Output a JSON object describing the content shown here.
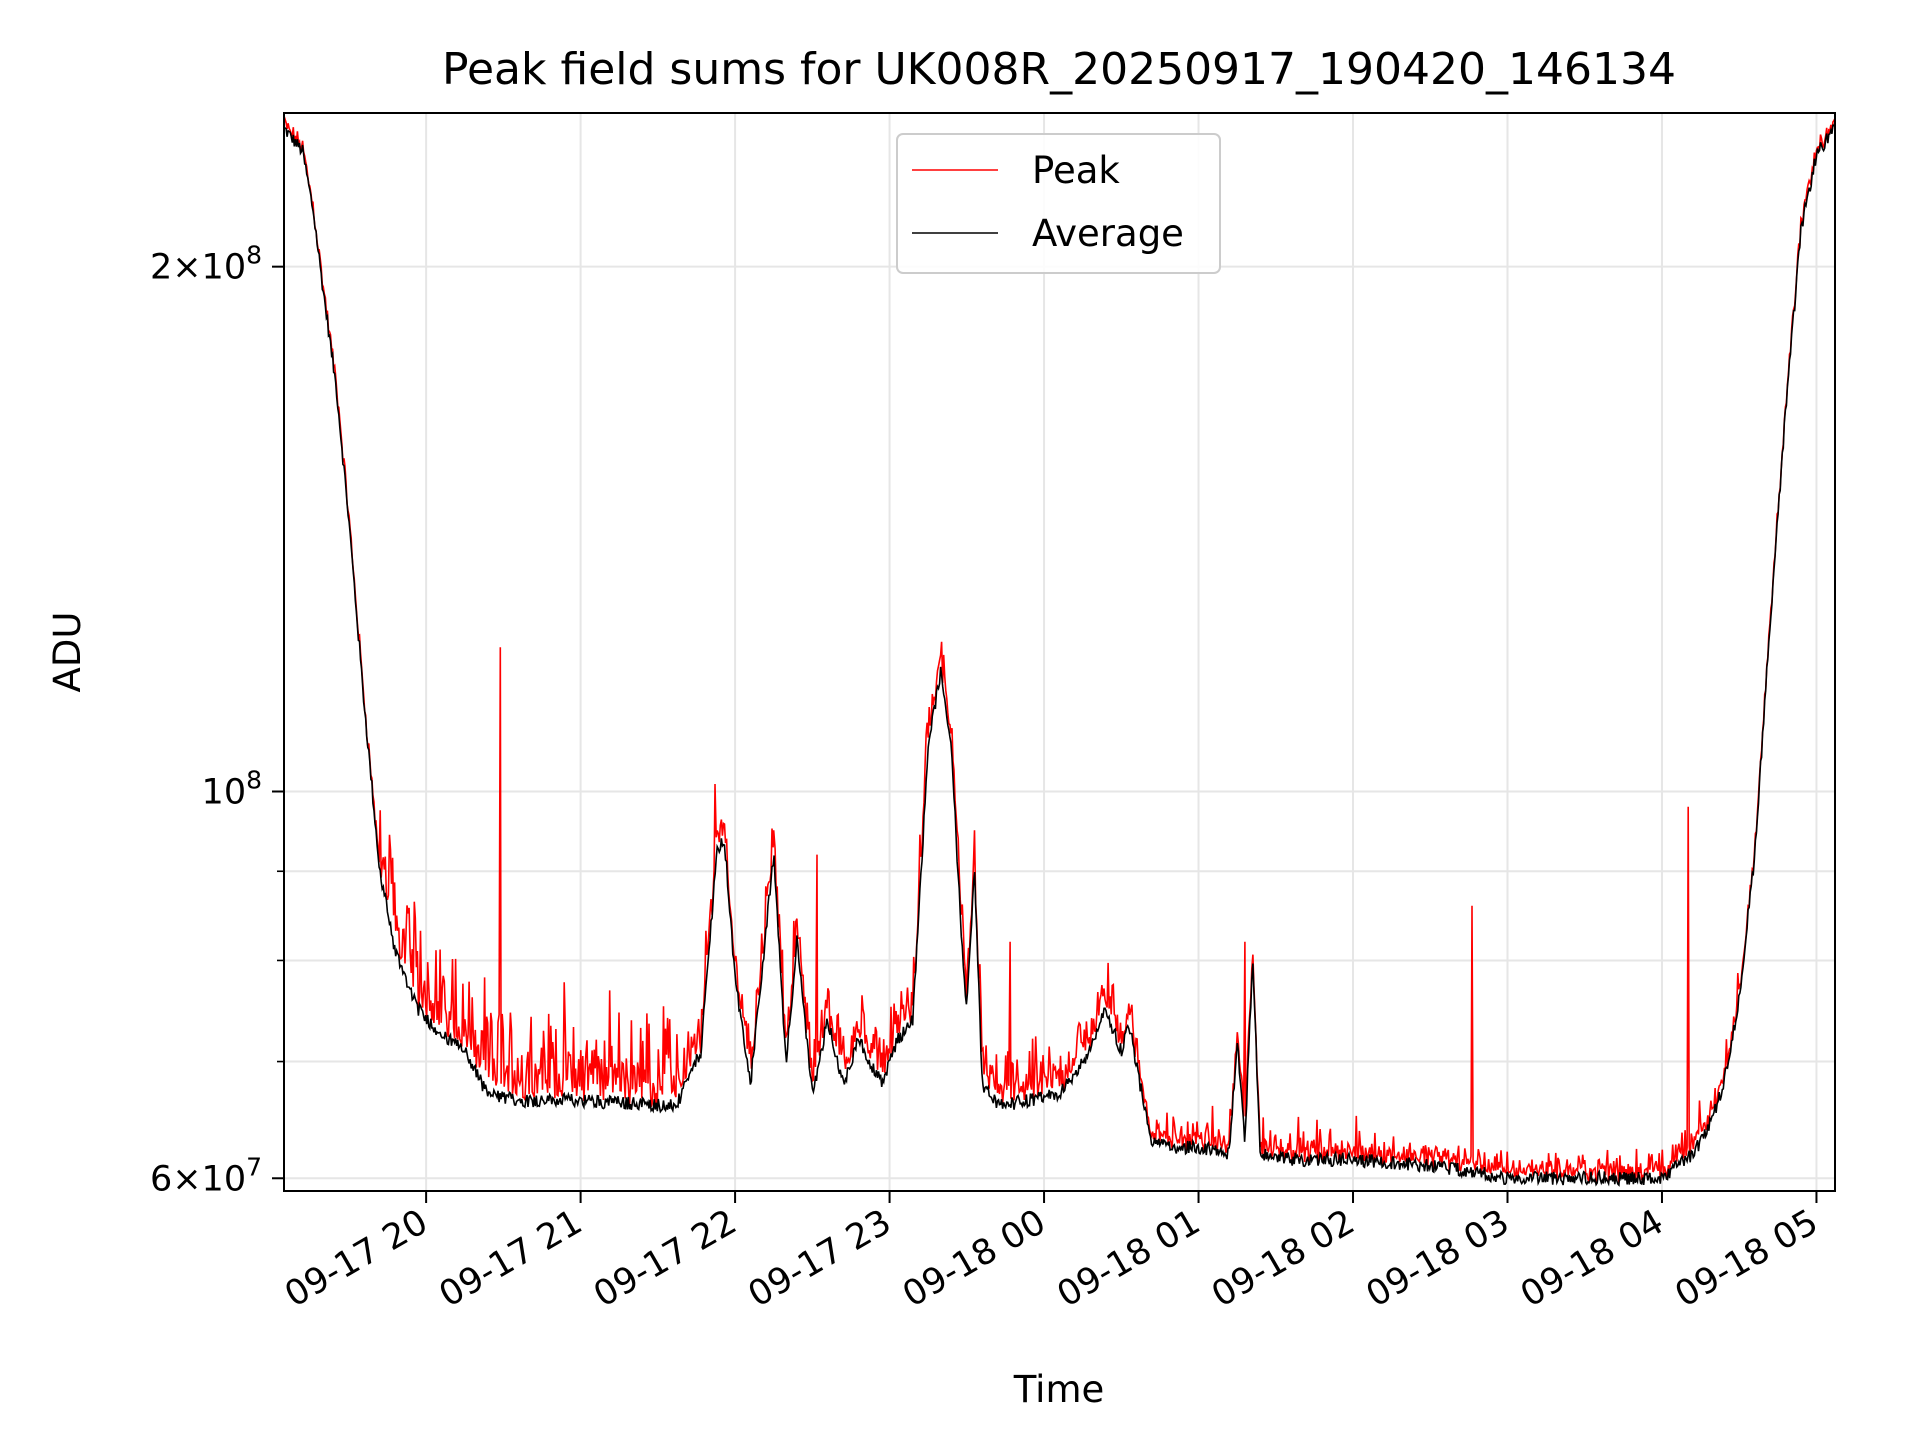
{
  "chart_data": {
    "type": "line",
    "title": "Peak field sums for UK008R_20250917_190420_146134",
    "xlabel": "Time",
    "ylabel": "ADU",
    "yscale": "log",
    "ylim": [
      59000000,
      245000000
    ],
    "xlim_hours": [
      19.08,
      29.12
    ],
    "x_tick_hours": [
      20,
      21,
      22,
      23,
      24,
      25,
      26,
      27,
      28,
      29
    ],
    "x_tick_labels": [
      "09-17 20",
      "09-17 21",
      "09-17 22",
      "09-17 23",
      "09-18 00",
      "09-18 01",
      "09-18 02",
      "09-18 03",
      "09-18 04",
      "09-18 05"
    ],
    "y_major_ticks": [
      {
        "value": 60000000,
        "mantissa": "6",
        "exponent": "7"
      },
      {
        "value": 100000000,
        "mantissa": "",
        "exponent": "8"
      },
      {
        "value": 200000000,
        "mantissa": "2",
        "exponent": "8"
      }
    ],
    "y_minor_ticks": [
      70000000,
      80000000,
      90000000
    ],
    "x_unit": "hours since 2025-09-17 00:00",
    "grid": true,
    "legend_position": "upper center",
    "series": [
      {
        "name": "Peak",
        "label": "Peak",
        "color": "#ff0000"
      },
      {
        "name": "Average",
        "label": "Average",
        "color": "#000000"
      }
    ],
    "average_keypoints": [
      [
        19.08,
        240000000
      ],
      [
        19.2,
        233000000
      ],
      [
        19.27,
        215000000
      ],
      [
        19.33,
        195000000
      ],
      [
        19.42,
        170000000
      ],
      [
        19.5,
        143000000
      ],
      [
        19.6,
        112000000
      ],
      [
        19.7,
        90000000
      ],
      [
        19.8,
        81000000
      ],
      [
        19.95,
        75000000
      ],
      [
        20.1,
        72500000
      ],
      [
        20.25,
        71000000
      ],
      [
        20.4,
        67000000
      ],
      [
        20.6,
        66500000
      ],
      [
        21.0,
        66500000
      ],
      [
        21.4,
        66200000
      ],
      [
        21.62,
        66000000
      ],
      [
        21.78,
        71000000
      ],
      [
        21.88,
        92000000
      ],
      [
        21.93,
        94000000
      ],
      [
        22.0,
        78000000
      ],
      [
        22.1,
        68000000
      ],
      [
        22.25,
        92000000
      ],
      [
        22.33,
        70000000
      ],
      [
        22.4,
        82000000
      ],
      [
        22.5,
        67000000
      ],
      [
        22.6,
        74000000
      ],
      [
        22.7,
        68000000
      ],
      [
        22.8,
        72000000
      ],
      [
        22.95,
        68000000
      ],
      [
        23.05,
        72000000
      ],
      [
        23.15,
        74000000
      ],
      [
        23.25,
        106000000
      ],
      [
        23.33,
        117000000
      ],
      [
        23.4,
        106000000
      ],
      [
        23.48,
        78000000
      ],
      [
        23.5,
        75000000
      ],
      [
        23.55,
        90000000
      ],
      [
        23.6,
        68000000
      ],
      [
        23.7,
        66000000
      ],
      [
        23.9,
        66500000
      ],
      [
        24.1,
        67000000
      ],
      [
        24.3,
        71000000
      ],
      [
        24.4,
        75000000
      ],
      [
        24.5,
        71000000
      ],
      [
        24.55,
        73500000
      ],
      [
        24.62,
        68000000
      ],
      [
        24.7,
        63000000
      ],
      [
        24.8,
        62500000
      ],
      [
        25.0,
        62500000
      ],
      [
        25.2,
        62000000
      ],
      [
        25.25,
        72000000
      ],
      [
        25.3,
        63000000
      ],
      [
        25.35,
        80000000
      ],
      [
        25.4,
        62000000
      ],
      [
        25.6,
        61500000
      ],
      [
        26.0,
        61500000
      ],
      [
        26.5,
        61000000
      ],
      [
        26.8,
        60500000
      ],
      [
        27.0,
        60000000
      ],
      [
        27.5,
        60000000
      ],
      [
        27.8,
        60000000
      ],
      [
        28.0,
        60000000
      ],
      [
        28.1,
        61000000
      ],
      [
        28.2,
        62000000
      ],
      [
        28.3,
        64000000
      ],
      [
        28.4,
        68000000
      ],
      [
        28.5,
        76000000
      ],
      [
        28.6,
        92000000
      ],
      [
        28.7,
        125000000
      ],
      [
        28.8,
        165000000
      ],
      [
        28.9,
        210000000
      ],
      [
        29.0,
        232000000
      ],
      [
        29.12,
        240000000
      ]
    ],
    "peak_spikes": [
      [
        20.48,
        121000000
      ],
      [
        21.87,
        101000000
      ],
      [
        22.25,
        95000000
      ],
      [
        22.53,
        92000000
      ],
      [
        23.55,
        95000000
      ],
      [
        23.78,
        82000000
      ],
      [
        25.3,
        82000000
      ],
      [
        26.77,
        86000000
      ],
      [
        28.17,
        98000000
      ]
    ]
  }
}
